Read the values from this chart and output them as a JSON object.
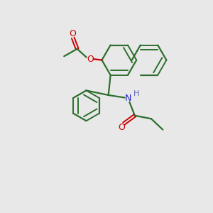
{
  "background_color": "#e8e8e8",
  "bond_color": "#2d6e2d",
  "atom_colors": {
    "O": "#cc0000",
    "N": "#2222cc",
    "H": "#6666bb",
    "C": "#2d6e2d"
  },
  "figsize": [
    3.0,
    3.0
  ],
  "dpi": 100,
  "xlim": [
    0,
    10
  ],
  "ylim": [
    0,
    10
  ]
}
